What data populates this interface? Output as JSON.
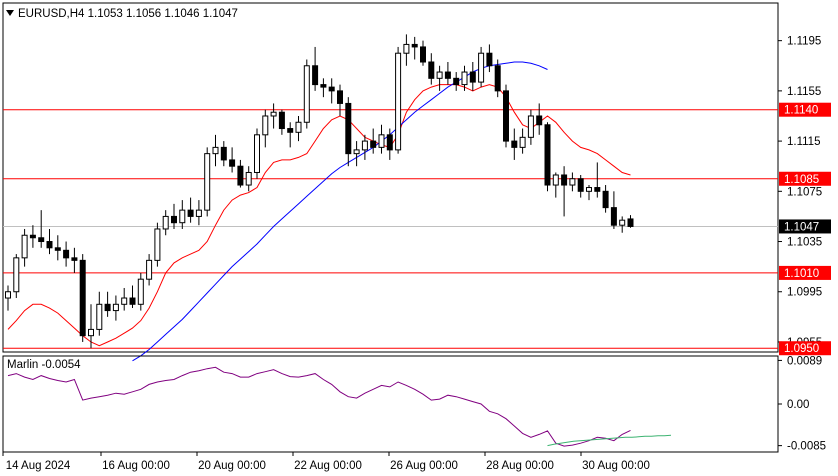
{
  "chart_data": {
    "type": "candlestick",
    "symbol_line": "EURUSD,H4  1.1053 1.1056 1.1046 1.1047",
    "x_tick_labels": [
      "14 Aug 2024",
      "16 Aug 00:00",
      "20 Aug 00:00",
      "22 Aug 00:00",
      "26 Aug 00:00",
      "28 Aug 00:00",
      "30 Aug 00:00"
    ],
    "price_axis": {
      "ylim": [
        1.0947,
        1.1225
      ],
      "tick_labels": [
        "1.1195",
        "1.1155",
        "1.1115",
        "1.1075",
        "1.1035",
        "1.0995",
        "1.0955"
      ],
      "current_price": "1.1047"
    },
    "levels": [
      {
        "value": 1.114,
        "label": "1.1140",
        "color": "#ff0000"
      },
      {
        "value": 1.1085,
        "label": "1.1085",
        "color": "#ff0000"
      },
      {
        "value": 1.101,
        "label": "1.1010",
        "color": "#ff0000"
      },
      {
        "value": 1.095,
        "label": "1.0950",
        "color": "#ff0000"
      }
    ],
    "candles": [
      [
        1.099,
        1.1,
        1.098,
        1.0995
      ],
      [
        1.0995,
        1.1025,
        1.099,
        1.1022
      ],
      [
        1.1022,
        1.1045,
        1.1015,
        1.104
      ],
      [
        1.104,
        1.1048,
        1.103,
        1.1038
      ],
      [
        1.1038,
        1.106,
        1.103,
        1.1035
      ],
      [
        1.1035,
        1.1045,
        1.1025,
        1.103
      ],
      [
        1.103,
        1.104,
        1.102,
        1.1028
      ],
      [
        1.1028,
        1.1035,
        1.1015,
        1.1022
      ],
      [
        1.1022,
        1.103,
        1.101,
        1.102
      ],
      [
        1.102,
        1.1025,
        1.0955,
        1.096
      ],
      [
        1.096,
        1.0985,
        1.095,
        1.0965
      ],
      [
        1.0965,
        1.0995,
        1.096,
        1.0985
      ],
      [
        1.0985,
        1.0995,
        1.0975,
        1.098
      ],
      [
        1.098,
        1.0992,
        1.0972,
        1.0985
      ],
      [
        1.0985,
        1.0998,
        1.098,
        1.099
      ],
      [
        1.099,
        1.1,
        1.0982,
        1.0985
      ],
      [
        1.0985,
        1.101,
        1.098,
        1.1005
      ],
      [
        1.1005,
        1.1025,
        1.1,
        1.102
      ],
      [
        1.102,
        1.105,
        1.1015,
        1.1045
      ],
      [
        1.1045,
        1.106,
        1.104,
        1.1055
      ],
      [
        1.1055,
        1.1065,
        1.1045,
        1.105
      ],
      [
        1.105,
        1.1068,
        1.1045,
        1.106
      ],
      [
        1.106,
        1.107,
        1.105,
        1.1055
      ],
      [
        1.1055,
        1.1068,
        1.1048,
        1.106
      ],
      [
        1.106,
        1.111,
        1.1055,
        1.1105
      ],
      [
        1.1105,
        1.112,
        1.1095,
        1.111
      ],
      [
        1.111,
        1.1115,
        1.1095,
        1.11
      ],
      [
        1.11,
        1.111,
        1.109,
        1.1095
      ],
      [
        1.1095,
        1.11,
        1.1078,
        1.108
      ],
      [
        1.108,
        1.1095,
        1.1075,
        1.109
      ],
      [
        1.109,
        1.1125,
        1.1085,
        1.112
      ],
      [
        1.112,
        1.114,
        1.111,
        1.1135
      ],
      [
        1.1135,
        1.1145,
        1.1125,
        1.1138
      ],
      [
        1.1138,
        1.114,
        1.112,
        1.1125
      ],
      [
        1.1125,
        1.113,
        1.111,
        1.1122
      ],
      [
        1.1122,
        1.1135,
        1.1115,
        1.113
      ],
      [
        1.113,
        1.118,
        1.1125,
        1.1175
      ],
      [
        1.1175,
        1.119,
        1.1155,
        1.116
      ],
      [
        1.116,
        1.1165,
        1.115,
        1.1158
      ],
      [
        1.1158,
        1.1165,
        1.1145,
        1.1155
      ],
      [
        1.1155,
        1.116,
        1.1135,
        1.1145
      ],
      [
        1.1145,
        1.115,
        1.1095,
        1.1105
      ],
      [
        1.1105,
        1.1115,
        1.1095,
        1.1108
      ],
      [
        1.1108,
        1.112,
        1.11,
        1.1115
      ],
      [
        1.1115,
        1.1125,
        1.1105,
        1.111
      ],
      [
        1.111,
        1.1128,
        1.1105,
        1.112
      ],
      [
        1.112,
        1.1125,
        1.11,
        1.1108
      ],
      [
        1.1108,
        1.119,
        1.1105,
        1.1185
      ],
      [
        1.1185,
        1.12,
        1.1175,
        1.1192
      ],
      [
        1.1192,
        1.1198,
        1.118,
        1.119
      ],
      [
        1.119,
        1.1195,
        1.1175,
        1.1178
      ],
      [
        1.1178,
        1.1185,
        1.116,
        1.1165
      ],
      [
        1.1165,
        1.1175,
        1.1155,
        1.117
      ],
      [
        1.117,
        1.1178,
        1.116,
        1.1165
      ],
      [
        1.1165,
        1.117,
        1.1155,
        1.116
      ],
      [
        1.116,
        1.1175,
        1.1155,
        1.117
      ],
      [
        1.117,
        1.1178,
        1.1155,
        1.1162
      ],
      [
        1.1162,
        1.119,
        1.1158,
        1.1185
      ],
      [
        1.1185,
        1.1192,
        1.117,
        1.1175
      ],
      [
        1.1175,
        1.118,
        1.115,
        1.1155
      ],
      [
        1.1155,
        1.116,
        1.111,
        1.1115
      ],
      [
        1.1115,
        1.1125,
        1.11,
        1.111
      ],
      [
        1.111,
        1.1125,
        1.1105,
        1.1118
      ],
      [
        1.1118,
        1.114,
        1.1112,
        1.1135
      ],
      [
        1.1135,
        1.1145,
        1.112,
        1.1128
      ],
      [
        1.1128,
        1.113,
        1.1075,
        1.108
      ],
      [
        1.108,
        1.109,
        1.107,
        1.1088
      ],
      [
        1.1088,
        1.1095,
        1.1055,
        1.108
      ],
      [
        1.108,
        1.109,
        1.1075,
        1.1085
      ],
      [
        1.1085,
        1.1088,
        1.107,
        1.1075
      ],
      [
        1.1075,
        1.108,
        1.1068,
        1.1078
      ],
      [
        1.1078,
        1.1098,
        1.107,
        1.1075
      ],
      [
        1.1075,
        1.108,
        1.1058,
        1.1062
      ],
      [
        1.1062,
        1.1075,
        1.1045,
        1.1048
      ],
      [
        1.1048,
        1.1055,
        1.1042,
        1.1052
      ],
      [
        1.1053,
        1.1056,
        1.1046,
        1.1047
      ]
    ],
    "series": [
      {
        "name": "",
        "color": "#ff0000",
        "values": [
          1.0965,
          1.0972,
          1.098,
          1.0985,
          1.0985,
          1.0982,
          1.0978,
          1.0972,
          1.0966,
          1.096,
          1.0955,
          1.0952,
          1.0955,
          1.0958,
          1.0962,
          1.0966,
          1.0972,
          1.0982,
          1.0995,
          1.101,
          1.1018,
          1.1022,
          1.1025,
          1.1028,
          1.1035,
          1.1048,
          1.106,
          1.1068,
          1.1072,
          1.1074,
          1.1078,
          1.109,
          1.1098,
          1.11,
          1.11,
          1.1102,
          1.1105,
          1.1115,
          1.1125,
          1.1132,
          1.1135,
          1.1132,
          1.1125,
          1.1118,
          1.1115,
          1.1112,
          1.111,
          1.112,
          1.1138,
          1.1148,
          1.1155,
          1.1158,
          1.116,
          1.116,
          1.116,
          1.1158,
          1.1155,
          1.1158,
          1.116,
          1.1158,
          1.115,
          1.1138,
          1.1128,
          1.1125,
          1.113,
          1.1135,
          1.113,
          1.1122,
          1.1115,
          1.111,
          1.1108,
          1.1105,
          1.11,
          1.1095,
          1.109,
          1.1088
        ]
      },
      {
        "name": "",
        "color": "#0000ff",
        "values": [
          null,
          null,
          null,
          null,
          null,
          null,
          null,
          null,
          null,
          null,
          null,
          null,
          null,
          null,
          null,
          1.094,
          1.0944,
          1.0949,
          1.0955,
          1.0961,
          1.0967,
          1.0973,
          1.098,
          1.0987,
          1.0994,
          1.1001,
          1.1008,
          1.1015,
          1.1021,
          1.1027,
          1.1033,
          1.104,
          1.1047,
          1.1053,
          1.1059,
          1.1065,
          1.1071,
          1.1077,
          1.1083,
          1.1089,
          1.1094,
          1.1098,
          1.1102,
          1.1106,
          1.111,
          1.1115,
          1.112,
          1.1126,
          1.1132,
          1.1138,
          1.1143,
          1.1148,
          1.1153,
          1.1158,
          1.1162,
          1.1166,
          1.117,
          1.1173,
          1.1175,
          1.1176,
          1.1177,
          1.1178,
          1.1178,
          1.1177,
          1.1175,
          1.1172
        ]
      }
    ],
    "indicator": {
      "label": "Marlin -0.0054",
      "ylim": [
        -0.0098,
        0.0098
      ],
      "tick_labels": [
        "0.0089",
        "0.00",
        "-0.0085"
      ],
      "values": [
        0.0058,
        0.0062,
        0.0055,
        0.005,
        0.0058,
        0.0052,
        0.0048,
        0.0045,
        0.005,
        0.0008,
        0.0012,
        0.0015,
        0.0018,
        0.0022,
        0.002,
        0.0025,
        0.003,
        0.004,
        0.0045,
        0.0048,
        0.005,
        0.0058,
        0.0065,
        0.0068,
        0.0072,
        0.0075,
        0.0065,
        0.0062,
        0.0055,
        0.0055,
        0.0062,
        0.0066,
        0.007,
        0.0062,
        0.0056,
        0.0055,
        0.0058,
        0.0062,
        0.005,
        0.004,
        0.0025,
        0.0015,
        0.0012,
        0.0022,
        0.003,
        0.0038,
        0.0035,
        0.0045,
        0.0038,
        0.003,
        0.002,
        0.0008,
        0.001,
        0.0018,
        0.0015,
        0.001,
        0.0005,
        0.0,
        -0.0015,
        -0.002,
        -0.003,
        -0.0045,
        -0.006,
        -0.0068,
        -0.0062,
        -0.0055,
        -0.008,
        -0.0086,
        -0.0084,
        -0.008,
        -0.0075,
        -0.0068,
        -0.007,
        -0.0075,
        -0.0062,
        -0.0054
      ],
      "signal_values": [
        -0.0085,
        -0.0082,
        -0.008,
        -0.0078,
        -0.0076,
        -0.0075,
        -0.0074,
        -0.0073,
        -0.0072,
        -0.0071,
        -0.007,
        -0.0069,
        -0.0068,
        -0.0068,
        -0.0067,
        -0.0066,
        -0.0066,
        -0.0065,
        -0.0065,
        -0.0064
      ],
      "color": "#800080",
      "signal_color": "#3cb371"
    }
  }
}
